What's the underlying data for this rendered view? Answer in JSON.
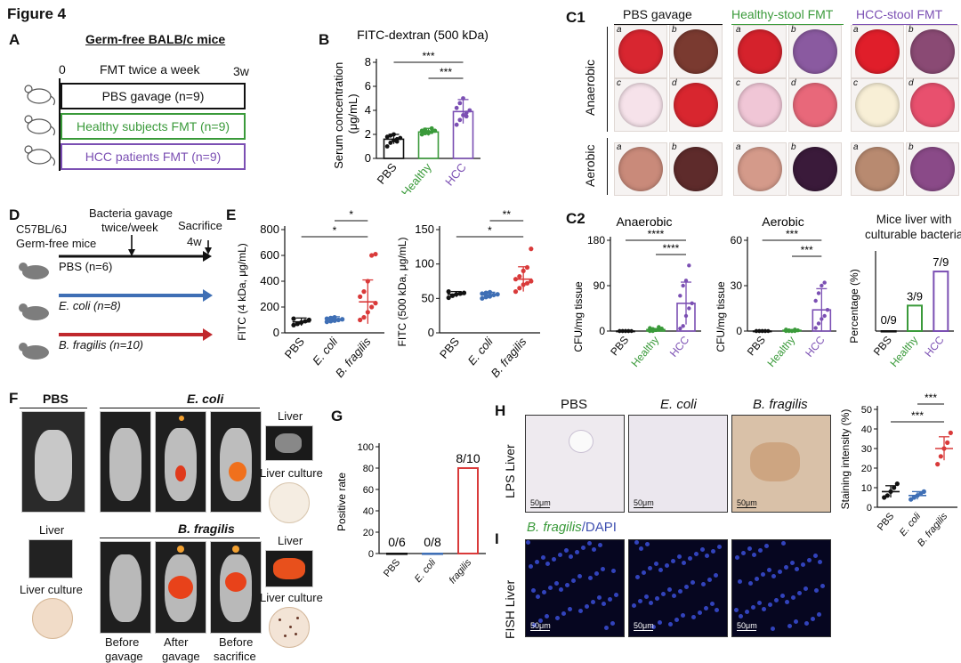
{
  "figure_title": "Figure 4",
  "panel_labels": {
    "A": "A",
    "B": "B",
    "C1": "C1",
    "C2": "C2",
    "D": "D",
    "E": "E",
    "F": "F",
    "G": "G",
    "H": "H",
    "I": "I"
  },
  "panelA": {
    "title": "Germ-free BALB/c mice",
    "time_start": "0",
    "time_label": "FMT twice a week",
    "time_end": "3w",
    "groups": [
      {
        "label": "PBS gavage (n=9)",
        "color": "#111111"
      },
      {
        "label": "Healthy subjects FMT (n=9)",
        "color": "#3a9a3a"
      },
      {
        "label": "HCC patients FMT (n=9)",
        "color": "#7b4fb3"
      }
    ]
  },
  "panelD": {
    "strain": "C57BL/6J",
    "strain2": "Germ-free mice",
    "gavage_label": "Bacteria gavage",
    "gavage_label2": "twice/week",
    "sacrifice_label": "Sacrifice",
    "end_label": "4w",
    "groups": [
      {
        "label": "PBS (n=6)",
        "color": "#111111"
      },
      {
        "label": "E. coli (n=8)",
        "color": "#3f6fb5"
      },
      {
        "label": "B. fragilis (n=10)",
        "color": "#c0282d"
      }
    ]
  },
  "panelC1": {
    "columns": [
      "PBS gavage",
      "Healthy-stool FMT",
      "HCC-stool FMT"
    ],
    "column_colors": [
      "#111111",
      "#3a9a3a",
      "#7b4fb3"
    ],
    "rows": [
      "Anaerobic",
      "Aerobic"
    ],
    "sub_letters": [
      "a",
      "b",
      "c",
      "d"
    ]
  },
  "panelF": {
    "pbs_title": "PBS",
    "ecoli_title": "E. coli",
    "bfrag_title": "B. fragilis",
    "liver": "Liver",
    "liver_culture": "Liver culture",
    "time_labels": [
      "Before",
      "After",
      "Before"
    ],
    "time_labels2": [
      "gavage",
      "gavage",
      "sacrifice"
    ]
  },
  "panelH": {
    "row_label": "LPS Liver",
    "columns": [
      "PBS",
      "E. coli",
      "B. fragilis"
    ],
    "scale": "50μm"
  },
  "panelI": {
    "row_label": "FISH Liver",
    "title_green": "B. fragilis",
    "title_rest": "/DAPI",
    "scale": "50μm"
  },
  "chart_data": [
    {
      "id": "B",
      "type": "bar",
      "title": "FITC-dextran (500 kDa)",
      "categories": [
        "PBS",
        "Healthy",
        "HCC"
      ],
      "category_colors": [
        "#111111",
        "#3a9a3a",
        "#7b4fb3"
      ],
      "values": [
        1.6,
        2.2,
        3.9
      ],
      "errors": [
        0.4,
        0.3,
        1.0
      ],
      "points": [
        [
          1.0,
          1.3,
          1.5,
          1.6,
          1.7,
          1.8,
          1.9,
          2.0,
          1.4
        ],
        [
          2.0,
          2.1,
          2.2,
          2.2,
          2.3,
          2.3,
          2.4,
          2.1,
          2.5
        ],
        [
          2.8,
          3.2,
          3.6,
          3.8,
          4.0,
          4.2,
          4.6,
          5.0,
          3.5
        ]
      ],
      "ylabel": "Serum concentration (μg/mL)",
      "ylim": [
        0,
        8
      ],
      "yticks": [
        0,
        2,
        4,
        6,
        8
      ],
      "significance": [
        "***",
        "***"
      ]
    },
    {
      "id": "E1",
      "type": "scatter",
      "categories": [
        "PBS",
        "E. coli",
        "B. fragilis"
      ],
      "category_colors": [
        "#111111",
        "#3f6fb5",
        "#d93a3a"
      ],
      "means": [
        85,
        105,
        240
      ],
      "errors": [
        30,
        20,
        170
      ],
      "points": [
        [
          60,
          70,
          80,
          90,
          100,
          110
        ],
        [
          85,
          90,
          95,
          100,
          105,
          110,
          115,
          120
        ],
        [
          100,
          120,
          160,
          200,
          230,
          280,
          320,
          400,
          600,
          610
        ]
      ],
      "ylabel": "FITC (4 kDa, μg/mL)",
      "ylim": [
        0,
        800
      ],
      "yticks": [
        0,
        200,
        400,
        600,
        800
      ],
      "significance": [
        "*",
        "*"
      ]
    },
    {
      "id": "E2",
      "type": "scatter",
      "categories": [
        "PBS",
        "E. coli",
        "B. fragilis"
      ],
      "category_colors": [
        "#111111",
        "#3f6fb5",
        "#d93a3a"
      ],
      "means": [
        56,
        55,
        78
      ],
      "errors": [
        4,
        4,
        18
      ],
      "points": [
        [
          51,
          54,
          56,
          57,
          58,
          60
        ],
        [
          50,
          52,
          53,
          55,
          56,
          57,
          58,
          59
        ],
        [
          60,
          65,
          70,
          72,
          75,
          78,
          82,
          90,
          95,
          122
        ]
      ],
      "ylabel": "FITC (500 kDa, μg/mL)",
      "ylim": [
        0,
        150
      ],
      "yticks": [
        0,
        50,
        100,
        150
      ],
      "significance": [
        "*",
        "**"
      ]
    },
    {
      "id": "C2a",
      "type": "bar",
      "title": "Anaerobic",
      "categories": [
        "PBS",
        "Healthy",
        "HCC"
      ],
      "category_colors": [
        "#111111",
        "#3a9a3a",
        "#7b4fb3"
      ],
      "values": [
        0,
        3,
        55
      ],
      "errors": [
        0,
        2,
        42
      ],
      "points": [
        [
          0,
          0,
          0,
          0,
          0,
          0,
          0,
          0,
          0
        ],
        [
          0,
          0,
          2,
          3,
          5,
          6,
          4,
          2,
          8
        ],
        [
          5,
          10,
          30,
          45,
          55,
          70,
          90,
          100,
          130
        ]
      ],
      "ylabel": "CFU/mg tissue",
      "ylim": [
        0,
        180
      ],
      "yticks": [
        0,
        90,
        180
      ],
      "significance": [
        "****",
        "****"
      ]
    },
    {
      "id": "C2b",
      "type": "bar",
      "title": "Aerobic",
      "categories": [
        "PBS",
        "Healthy",
        "HCC"
      ],
      "category_colors": [
        "#111111",
        "#3a9a3a",
        "#7b4fb3"
      ],
      "values": [
        0,
        0.5,
        14
      ],
      "errors": [
        0,
        0.5,
        14
      ],
      "points": [
        [
          0,
          0,
          0,
          0,
          0,
          0,
          0,
          0,
          0
        ],
        [
          0,
          0,
          0,
          0,
          0.5,
          1,
          0.5,
          0,
          1
        ],
        [
          2,
          5,
          8,
          10,
          14,
          20,
          25,
          30,
          32
        ]
      ],
      "ylabel": "CFU/mg tissue",
      "ylim": [
        0,
        60
      ],
      "yticks": [
        0,
        30,
        60
      ],
      "significance": [
        "***",
        "***"
      ]
    },
    {
      "id": "C2c",
      "type": "bar",
      "title": "Mice liver with culturable bacteria",
      "categories": [
        "PBS",
        "Healthy",
        "HCC"
      ],
      "category_colors": [
        "#111111",
        "#3a9a3a",
        "#7b4fb3"
      ],
      "values": [
        0,
        33.3,
        77.8
      ],
      "data_labels": [
        "0/9",
        "3/9",
        "7/9"
      ],
      "ylabel": "Percentage (%)",
      "ylim": [
        0,
        100
      ]
    },
    {
      "id": "G",
      "type": "bar",
      "categories": [
        "PBS",
        "E. coli",
        "B. fragilis"
      ],
      "category_colors": [
        "#111111",
        "#3f6fb5",
        "#d93a3a"
      ],
      "values": [
        0,
        0,
        80
      ],
      "data_labels": [
        "0/6",
        "0/8",
        "8/10"
      ],
      "ylabel": "Positive rate",
      "ylim": [
        0,
        100
      ],
      "yticks": [
        0,
        20,
        40,
        60,
        80,
        100
      ]
    },
    {
      "id": "H",
      "type": "scatter",
      "categories": [
        "PBS",
        "E. coli",
        "B. fragilis"
      ],
      "category_colors": [
        "#111111",
        "#3f6fb5",
        "#d93a3a"
      ],
      "means": [
        8,
        6,
        30
      ],
      "errors": [
        3,
        2,
        6
      ],
      "points": [
        [
          5,
          6,
          8,
          10,
          12
        ],
        [
          4,
          5,
          6,
          7,
          8
        ],
        [
          22,
          26,
          30,
          33,
          38
        ]
      ],
      "ylabel": "Staining intensity (%)",
      "ylim": [
        0,
        50
      ],
      "yticks": [
        0,
        10,
        20,
        30,
        40,
        50
      ],
      "significance": [
        "***",
        "***"
      ]
    }
  ]
}
